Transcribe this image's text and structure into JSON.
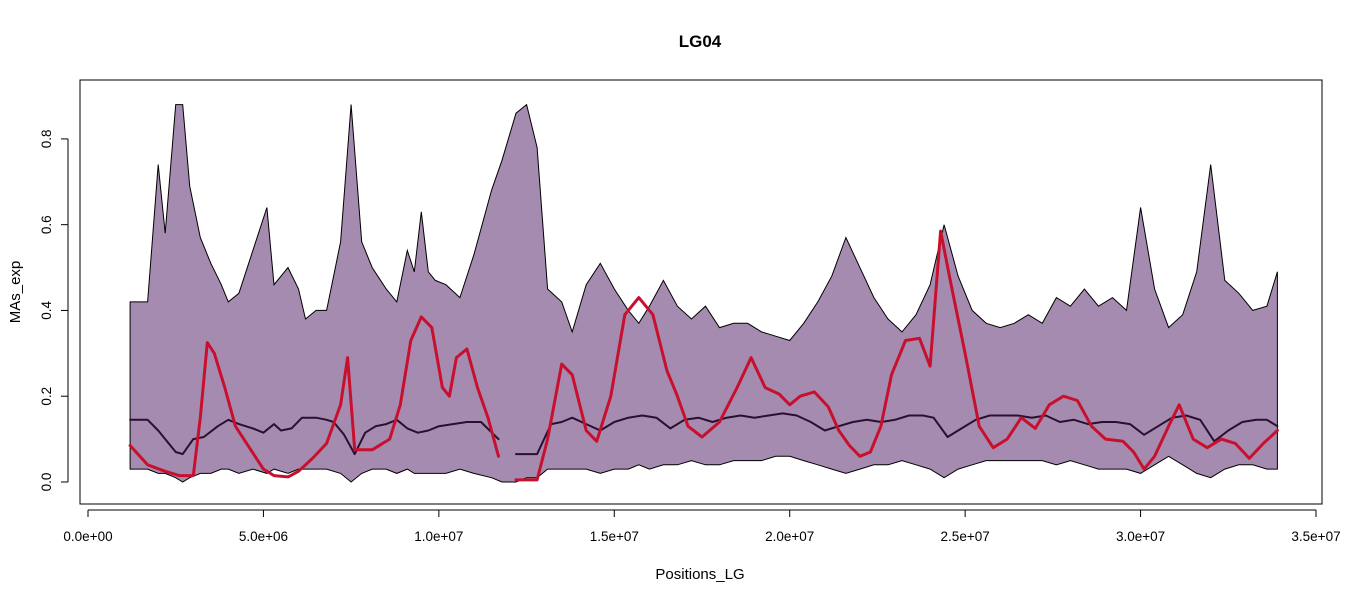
{
  "chart_data": {
    "type": "area",
    "title": "LG04",
    "xlabel": "Positions_LG",
    "ylabel": "MAs_exp",
    "xlim": [
      0,
      35000000
    ],
    "ylim": [
      0,
      0.9
    ],
    "x_ticks": [
      0,
      5000000,
      10000000,
      15000000,
      20000000,
      25000000,
      30000000,
      35000000
    ],
    "x_tick_labels": [
      "0.0e+00",
      "5.0e+06",
      "1.0e+07",
      "1.5e+07",
      "2.0e+07",
      "2.5e+07",
      "3.0e+07",
      "3.5e+07"
    ],
    "y_ticks": [
      0,
      0.2,
      0.4,
      0.6,
      0.8
    ],
    "y_tick_labels": [
      "0.0",
      "0.2",
      "0.4",
      "0.6",
      "0.8"
    ],
    "grid": false,
    "colors": {
      "band_fill": "#a68bb1",
      "band_edge": "#000000",
      "median_line": "#2a0f2f",
      "observed_line": "#c8102e",
      "observed_outside": "#ff0000"
    },
    "band": {
      "name": "",
      "x": [
        1200000,
        1700000,
        2000000,
        2200000,
        2500000,
        2700000,
        2900000,
        3200000,
        3500000,
        3800000,
        4000000,
        4300000,
        4700000,
        5100000,
        5300000,
        5700000,
        6000000,
        6200000,
        6500000,
        6800000,
        7200000,
        7500000,
        7800000,
        8100000,
        8500000,
        8800000,
        9100000,
        9300000,
        9500000,
        9700000,
        9900000,
        10200000,
        10600000,
        11000000,
        11500000,
        11800000,
        12200000,
        12500000,
        12800000,
        13100000,
        13500000,
        13800000,
        14200000,
        14600000,
        15000000,
        15400000,
        15700000,
        16000000,
        16400000,
        16800000,
        17200000,
        17600000,
        18000000,
        18400000,
        18800000,
        19200000,
        19600000,
        20000000,
        20400000,
        20800000,
        21200000,
        21600000,
        22000000,
        22400000,
        22800000,
        23200000,
        23600000,
        24000000,
        24400000,
        24800000,
        25200000,
        25600000,
        26000000,
        26400000,
        26800000,
        27200000,
        27600000,
        28000000,
        28400000,
        28800000,
        29200000,
        29600000,
        30000000,
        30400000,
        30800000,
        31200000,
        31600000,
        32000000,
        32400000,
        32800000,
        33200000,
        33600000,
        33900000
      ],
      "upper": [
        0.42,
        0.42,
        0.74,
        0.58,
        0.88,
        0.88,
        0.69,
        0.57,
        0.51,
        0.46,
        0.42,
        0.44,
        0.54,
        0.64,
        0.46,
        0.5,
        0.45,
        0.38,
        0.4,
        0.4,
        0.56,
        0.88,
        0.56,
        0.5,
        0.45,
        0.42,
        0.54,
        0.49,
        0.63,
        0.49,
        0.47,
        0.46,
        0.43,
        0.53,
        0.68,
        0.75,
        0.86,
        0.88,
        0.78,
        0.45,
        0.42,
        0.35,
        0.46,
        0.51,
        0.45,
        0.4,
        0.37,
        0.41,
        0.47,
        0.41,
        0.38,
        0.41,
        0.36,
        0.37,
        0.37,
        0.35,
        0.34,
        0.33,
        0.37,
        0.42,
        0.48,
        0.57,
        0.5,
        0.43,
        0.38,
        0.35,
        0.39,
        0.46,
        0.6,
        0.48,
        0.4,
        0.37,
        0.36,
        0.37,
        0.39,
        0.37,
        0.43,
        0.41,
        0.45,
        0.41,
        0.43,
        0.4,
        0.64,
        0.45,
        0.36,
        0.39,
        0.49,
        0.74,
        0.47,
        0.44,
        0.4,
        0.41,
        0.49
      ],
      "lower": [
        0.03,
        0.03,
        0.02,
        0.02,
        0.01,
        0.0,
        0.01,
        0.02,
        0.02,
        0.03,
        0.03,
        0.02,
        0.03,
        0.02,
        0.03,
        0.02,
        0.03,
        0.03,
        0.03,
        0.03,
        0.02,
        0.0,
        0.02,
        0.03,
        0.03,
        0.02,
        0.03,
        0.02,
        0.02,
        0.02,
        0.02,
        0.02,
        0.03,
        0.02,
        0.01,
        0.0,
        0.0,
        0.01,
        0.01,
        0.03,
        0.03,
        0.03,
        0.03,
        0.02,
        0.03,
        0.03,
        0.04,
        0.03,
        0.04,
        0.04,
        0.05,
        0.04,
        0.04,
        0.05,
        0.05,
        0.05,
        0.06,
        0.06,
        0.05,
        0.04,
        0.03,
        0.02,
        0.03,
        0.04,
        0.04,
        0.05,
        0.04,
        0.03,
        0.01,
        0.03,
        0.04,
        0.05,
        0.05,
        0.05,
        0.05,
        0.05,
        0.04,
        0.05,
        0.04,
        0.03,
        0.03,
        0.03,
        0.02,
        0.04,
        0.06,
        0.04,
        0.02,
        0.01,
        0.03,
        0.04,
        0.04,
        0.03,
        0.03
      ]
    },
    "series": [
      {
        "name": "",
        "color": "#2a0f2f",
        "segments": [
          {
            "x": [
              1200000,
              1700000,
              2000000,
              2200000,
              2500000,
              2700000,
              3000000,
              3300000,
              3700000,
              4000000,
              4300000,
              4700000,
              5000000,
              5300000,
              5500000,
              5800000,
              6100000,
              6500000,
              6800000,
              7000000,
              7300000,
              7600000,
              7900000,
              8200000,
              8500000,
              8800000,
              9100000,
              9400000,
              9700000,
              10000000,
              10400000,
              10800000,
              11200000,
              11700000
            ],
            "y": [
              0.145,
              0.145,
              0.12,
              0.1,
              0.07,
              0.065,
              0.1,
              0.105,
              0.13,
              0.145,
              0.135,
              0.125,
              0.115,
              0.135,
              0.12,
              0.125,
              0.15,
              0.15,
              0.145,
              0.14,
              0.11,
              0.065,
              0.115,
              0.13,
              0.135,
              0.145,
              0.125,
              0.115,
              0.12,
              0.13,
              0.135,
              0.14,
              0.14,
              0.1
            ]
          },
          {
            "x": [
              12200000,
              12800000,
              13200000,
              13500000,
              13800000,
              14200000,
              14600000,
              15000000,
              15400000,
              15800000,
              16200000,
              16600000,
              17000000,
              17400000,
              17800000,
              18200000,
              18600000,
              19000000,
              19400000,
              19800000,
              20200000,
              20600000,
              21000000,
              21400000,
              21800000,
              22200000,
              22600000,
              23000000,
              23400000,
              23800000,
              24100000,
              24500000,
              24900000,
              25300000,
              25700000,
              26100000,
              26500000,
              26900000,
              27300000,
              27700000,
              28100000,
              28500000,
              28900000,
              29300000,
              29700000,
              30100000,
              30500000,
              30900000,
              31300000,
              31700000,
              32100000,
              32500000,
              32900000,
              33300000,
              33600000,
              33900000
            ],
            "y": [
              0.065,
              0.065,
              0.135,
              0.14,
              0.15,
              0.135,
              0.12,
              0.14,
              0.15,
              0.155,
              0.15,
              0.125,
              0.145,
              0.15,
              0.14,
              0.15,
              0.155,
              0.15,
              0.155,
              0.16,
              0.155,
              0.14,
              0.12,
              0.13,
              0.14,
              0.145,
              0.14,
              0.145,
              0.155,
              0.155,
              0.15,
              0.105,
              0.125,
              0.145,
              0.155,
              0.155,
              0.155,
              0.15,
              0.155,
              0.14,
              0.145,
              0.135,
              0.14,
              0.14,
              0.135,
              0.11,
              0.13,
              0.15,
              0.155,
              0.145,
              0.095,
              0.12,
              0.14,
              0.145,
              0.145,
              0.13
            ]
          }
        ]
      },
      {
        "name": "",
        "color": "#c8102e",
        "segments": [
          {
            "x": [
              1200000,
              1700000,
              2200000,
              2600000,
              3000000,
              3200000,
              3400000,
              3600000,
              3900000,
              4200000,
              4600000,
              5000000,
              5300000,
              5700000,
              6000000,
              6400000,
              6800000,
              7200000,
              7400000,
              7600000,
              8100000,
              8600000,
              8900000,
              9200000,
              9500000,
              9800000,
              10100000,
              10300000,
              10500000,
              10800000,
              11100000,
              11400000,
              11700000
            ],
            "y": [
              0.085,
              0.04,
              0.025,
              0.015,
              0.015,
              0.15,
              0.325,
              0.3,
              0.22,
              0.13,
              0.08,
              0.03,
              0.015,
              0.012,
              0.025,
              0.055,
              0.09,
              0.18,
              0.29,
              0.075,
              0.075,
              0.1,
              0.18,
              0.33,
              0.385,
              0.36,
              0.22,
              0.2,
              0.29,
              0.31,
              0.22,
              0.15,
              0.06
            ]
          },
          {
            "x": [
              12200000,
              12800000,
              13100000,
              13500000,
              13800000,
              14200000,
              14500000,
              14900000,
              15300000,
              15700000,
              16100000,
              16500000,
              16800000,
              17100000,
              17500000,
              18000000,
              18500000,
              18900000,
              19300000,
              19700000,
              20000000,
              20300000,
              20700000,
              21100000,
              21400000,
              21700000,
              22000000,
              22300000,
              22600000,
              22900000,
              23300000,
              23700000,
              24000000,
              24300000,
              24600000,
              25000000,
              25400000,
              25800000,
              26200000,
              26600000,
              27000000,
              27400000,
              27800000,
              28200000,
              28600000,
              29000000,
              29500000,
              29800000,
              30100000,
              30400000,
              30800000,
              31100000,
              31500000,
              31900000,
              32300000,
              32700000,
              33100000,
              33500000,
              33900000
            ],
            "y": [
              0.005,
              0.005,
              0.1,
              0.275,
              0.25,
              0.12,
              0.095,
              0.2,
              0.39,
              0.43,
              0.39,
              0.26,
              0.2,
              0.13,
              0.105,
              0.14,
              0.22,
              0.29,
              0.22,
              0.205,
              0.18,
              0.2,
              0.21,
              0.175,
              0.12,
              0.085,
              0.06,
              0.07,
              0.13,
              0.25,
              0.33,
              0.335,
              0.27,
              0.585,
              0.46,
              0.3,
              0.13,
              0.08,
              0.1,
              0.15,
              0.125,
              0.18,
              0.2,
              0.19,
              0.13,
              0.1,
              0.095,
              0.07,
              0.03,
              0.06,
              0.13,
              0.18,
              0.1,
              0.08,
              0.1,
              0.09,
              0.055,
              0.09,
              0.12
            ]
          }
        ]
      }
    ]
  }
}
